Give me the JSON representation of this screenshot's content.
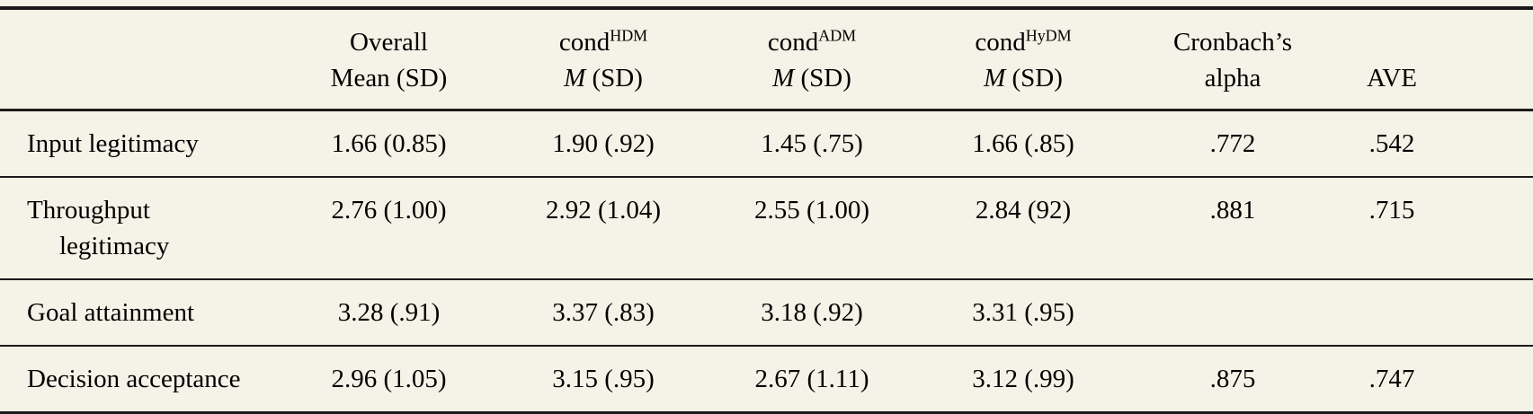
{
  "meta": {
    "background_color": "#f5f3e7",
    "rule_color": "#1a1a1a",
    "text_color": "#000000"
  },
  "table": {
    "header": {
      "stub": "",
      "overall": {
        "line1": "Overall",
        "line2": "Mean (SD)"
      },
      "cond_hdm": {
        "base": "cond",
        "sup": "HDM"
      },
      "cond_adm": {
        "base": "cond",
        "sup": "ADM"
      },
      "cond_hydm": {
        "base": "cond",
        "sup": "HyDM"
      },
      "m_label": "M",
      "sd_label": " (SD)",
      "cronbach": {
        "line1": "Cronbach’s",
        "line2": "alpha"
      },
      "ave": "AVE"
    },
    "rows": [
      {
        "label": "Input legitimacy",
        "label2": "",
        "values": [
          "1.66 (0.85)",
          "1.90 (.92)",
          "1.45 (.75)",
          "1.66 (.85)",
          ".772",
          ".542"
        ]
      },
      {
        "label": "Throughput",
        "label2": "legitimacy",
        "values": [
          "2.76 (1.00)",
          "2.92 (1.04)",
          "2.55 (1.00)",
          "2.84 (92)",
          ".881",
          ".715"
        ]
      },
      {
        "label": "Goal attainment",
        "label2": "",
        "values": [
          "3.28 (.91)",
          "3.37 (.83)",
          "3.18 (.92)",
          "3.31 (.95)",
          "",
          ""
        ]
      },
      {
        "label": "Decision acceptance",
        "label2": "",
        "values": [
          "2.96 (1.05)",
          "3.15 (.95)",
          "2.67 (1.11)",
          "3.12 (.99)",
          ".875",
          ".747"
        ]
      }
    ]
  }
}
